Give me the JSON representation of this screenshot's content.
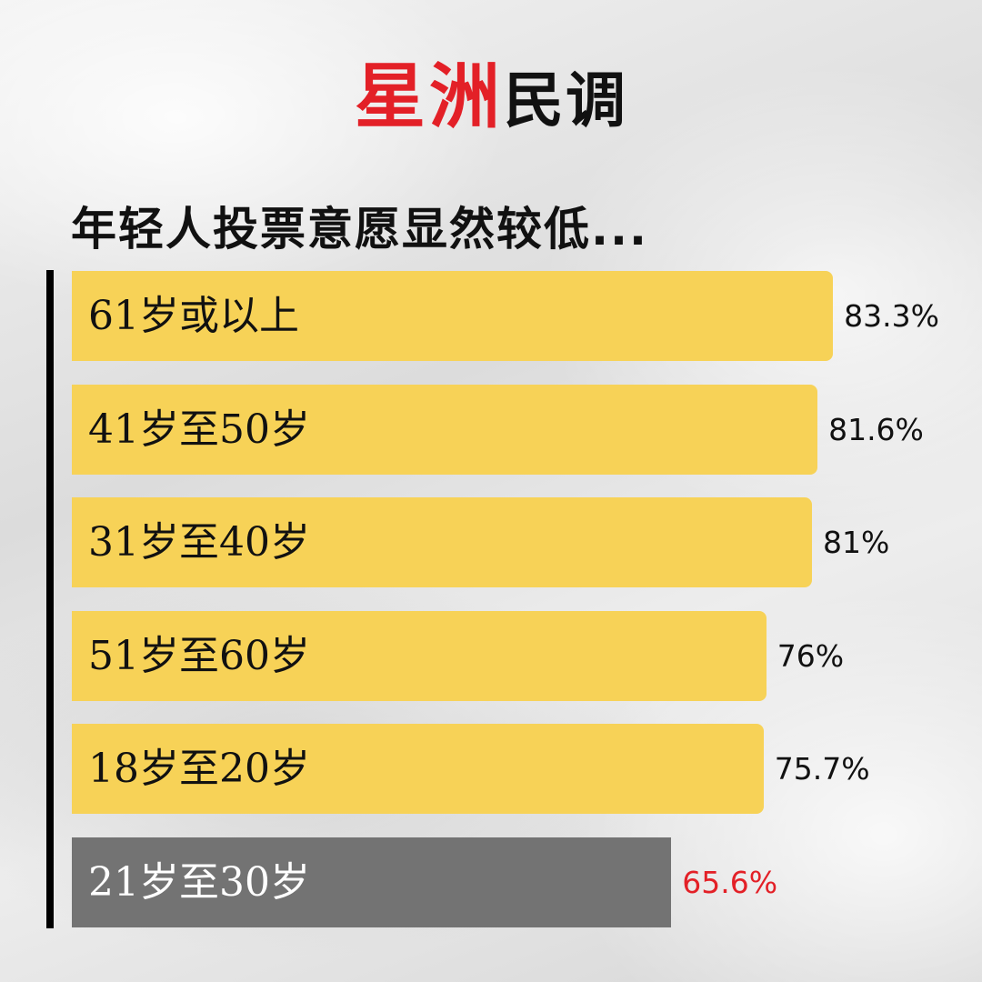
{
  "logo": {
    "red_text": "星洲",
    "black_text": "民调"
  },
  "chart_data": {
    "type": "bar",
    "orientation": "horizontal",
    "title": "年轻人投票意愿显然较低...",
    "categories": [
      "61岁或以上",
      "41岁至50岁",
      "31岁至40岁",
      "51岁至60岁",
      "18岁至20岁",
      "21岁至30岁"
    ],
    "values": [
      83.3,
      81.6,
      81,
      76,
      75.7,
      65.6
    ],
    "value_labels": [
      "83.3%",
      "81.6%",
      "81%",
      "76%",
      "75.7%",
      "65.6%"
    ],
    "xlim": [
      0,
      100
    ],
    "grid": false,
    "highlight_index": 5,
    "colors": {
      "bar": "#f7d257",
      "highlight_bar": "#737373",
      "label": "#111111",
      "highlight_label": "#ffffff",
      "value": "#111111",
      "highlight_value": "#e32027"
    }
  }
}
